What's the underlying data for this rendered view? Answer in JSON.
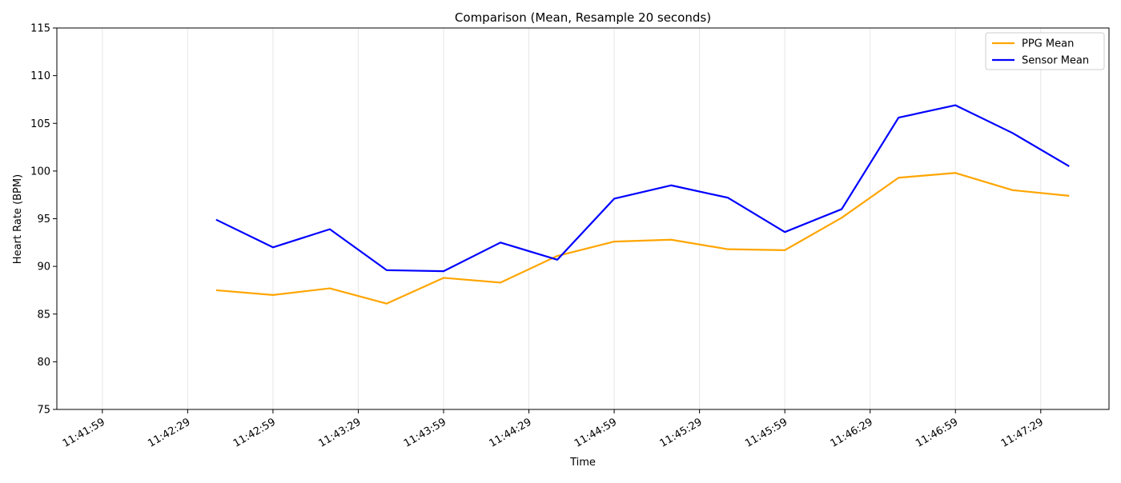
{
  "chart_data": {
    "type": "line",
    "title": "Comparison (Mean, Resample 20 seconds)",
    "xlabel": "Time",
    "ylabel": "Heart Rate (BPM)",
    "ylim": [
      75,
      115
    ],
    "xlim": [
      "11:41:43",
      "11:47:53"
    ],
    "yticks": [
      75,
      80,
      85,
      90,
      95,
      100,
      105,
      110,
      115
    ],
    "xticks": [
      "11:41:59",
      "11:42:29",
      "11:42:59",
      "11:43:29",
      "11:43:59",
      "11:44:29",
      "11:44:59",
      "11:45:29",
      "11:45:59",
      "11:46:29",
      "11:46:59",
      "11:47:29"
    ],
    "vertical_grid": true,
    "horizontal_grid": false,
    "legend_position": "top-right",
    "x": [
      "11:42:39",
      "11:42:59",
      "11:43:19",
      "11:43:39",
      "11:43:59",
      "11:44:19",
      "11:44:39",
      "11:44:59",
      "11:45:19",
      "11:45:39",
      "11:45:59",
      "11:46:19",
      "11:46:39",
      "11:46:59",
      "11:47:19",
      "11:47:39"
    ],
    "series": [
      {
        "name": "PPG Mean",
        "color": "#ffa500",
        "values": [
          87.5,
          87.0,
          87.7,
          86.1,
          88.8,
          88.3,
          91.1,
          92.6,
          92.8,
          91.8,
          91.7,
          95.1,
          99.3,
          99.8,
          98.0,
          97.4
        ]
      },
      {
        "name": "Sensor Mean",
        "color": "#0000ff",
        "values": [
          94.9,
          92.0,
          93.9,
          89.6,
          89.5,
          92.5,
          90.7,
          97.1,
          98.5,
          97.2,
          93.6,
          96.0,
          105.6,
          106.9,
          104.0,
          100.5
        ]
      }
    ]
  }
}
